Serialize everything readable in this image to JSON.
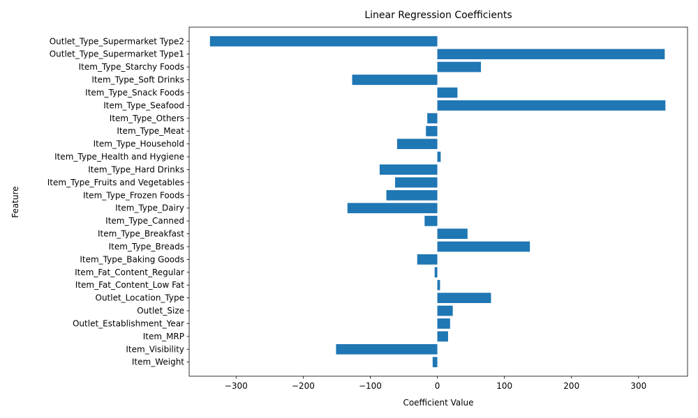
{
  "chart_data": {
    "type": "bar",
    "orientation": "horizontal",
    "title": "Linear Regression Coefficients",
    "xlabel": "Coefficient Value",
    "ylabel": "Feature",
    "xlim": [
      -370,
      373
    ],
    "xticks": [
      -300,
      -200,
      -100,
      0,
      100,
      200,
      300
    ],
    "xtick_labels": [
      "−300",
      "−200",
      "−100",
      "0",
      "100",
      "200",
      "300"
    ],
    "bar_color": "#1f77b4",
    "grid": false,
    "categories": [
      "Item_Weight",
      "Item_Visibility",
      "Item_MRP",
      "Outlet_Establishment_Year",
      "Outlet_Size",
      "Outlet_Location_Type",
      "Item_Fat_Content_Low Fat",
      "Item_Fat_Content_Regular",
      "Item_Type_Baking Goods",
      "Item_Type_Breads",
      "Item_Type_Breakfast",
      "Item_Type_Canned",
      "Item_Type_Dairy",
      "Item_Type_Frozen Foods",
      "Item_Type_Fruits and Vegetables",
      "Item_Type_Hard Drinks",
      "Item_Type_Health and Hygiene",
      "Item_Type_Household",
      "Item_Type_Meat",
      "Item_Type_Others",
      "Item_Type_Seafood",
      "Item_Type_Snack Foods",
      "Item_Type_Soft Drinks",
      "Item_Type_Starchy Foods",
      "Outlet_Type_Supermarket Type1",
      "Outlet_Type_Supermarket Type2"
    ],
    "values": [
      -7,
      -151,
      16,
      19,
      23,
      80,
      4,
      -4,
      -30,
      138,
      45,
      -19,
      -134,
      -76,
      -63,
      -86,
      5,
      -60,
      -17,
      -15,
      340,
      30,
      -127,
      65,
      339,
      -339
    ]
  }
}
